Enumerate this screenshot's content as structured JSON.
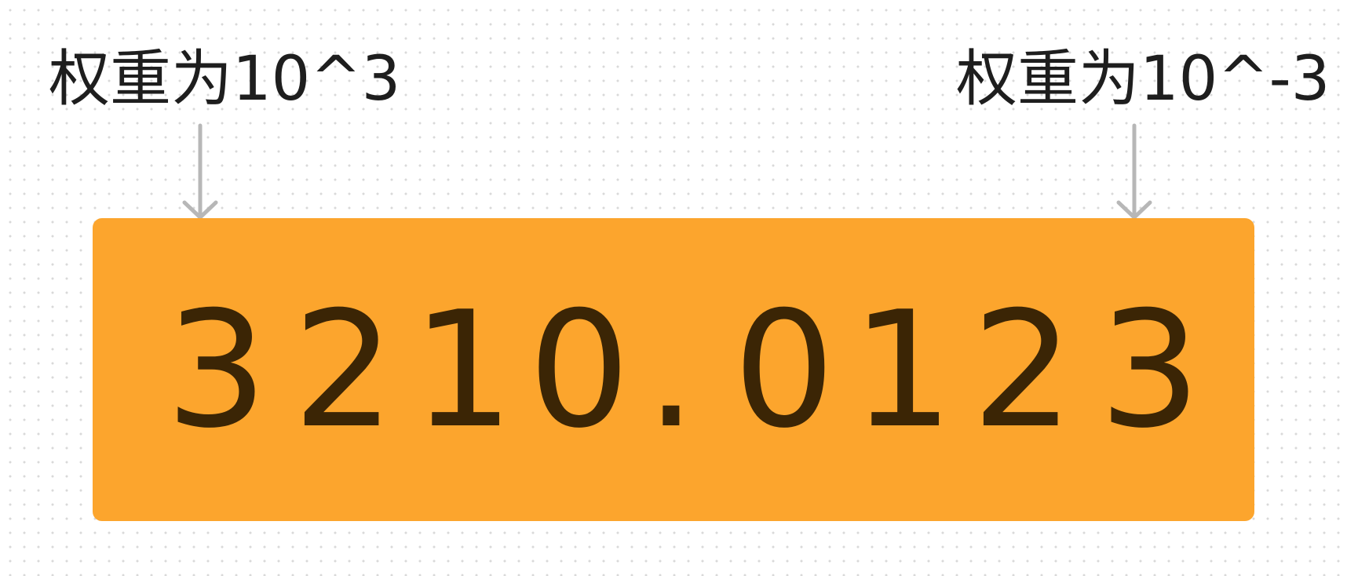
{
  "annotations": {
    "left_label": "权重为10^3",
    "right_label": "权重为10^-3"
  },
  "number": {
    "value": "3210.0123",
    "characters": [
      "3",
      "2",
      "1",
      "0",
      ".",
      "0",
      "1",
      "2",
      "3"
    ]
  },
  "colors": {
    "box_fill": "#fca52d",
    "digit_color": "#3b2505",
    "arrow_color": "#b7b7b7"
  }
}
